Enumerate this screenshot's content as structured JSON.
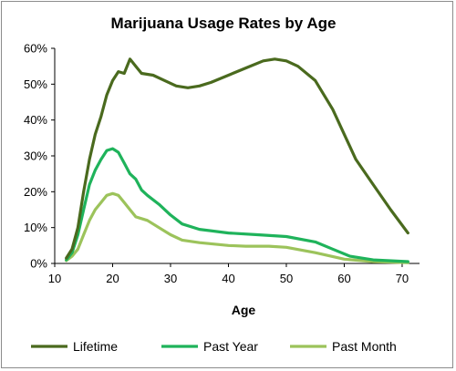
{
  "chart_data": {
    "type": "line",
    "title": "Marijuana Usage Rates by Age",
    "xlabel": "Age",
    "ylabel": "",
    "xlim": [
      10,
      73
    ],
    "ylim": [
      0,
      60
    ],
    "xticks": [
      10,
      20,
      30,
      40,
      50,
      60,
      70
    ],
    "xtick_labels": [
      "10",
      "20",
      "30",
      "40",
      "50",
      "60",
      "70"
    ],
    "yticks": [
      0,
      10,
      20,
      30,
      40,
      50,
      60
    ],
    "ytick_labels": [
      "0%",
      "10%",
      "20%",
      "30%",
      "40%",
      "50%",
      "60%"
    ],
    "legend_position": "bottom",
    "grid": false,
    "series": [
      {
        "name": "Lifetime",
        "color": "#4a6a1e",
        "points": [
          [
            12,
            1.5
          ],
          [
            13,
            4
          ],
          [
            14,
            10
          ],
          [
            15,
            20
          ],
          [
            16,
            29
          ],
          [
            17,
            36
          ],
          [
            18,
            41
          ],
          [
            19,
            47
          ],
          [
            20,
            51
          ],
          [
            21,
            53.5
          ],
          [
            22,
            53
          ],
          [
            23,
            57
          ],
          [
            24,
            55
          ],
          [
            25,
            53
          ],
          [
            27,
            52.5
          ],
          [
            29,
            51
          ],
          [
            31,
            49.5
          ],
          [
            33,
            49
          ],
          [
            35,
            49.5
          ],
          [
            37,
            50.5
          ],
          [
            40,
            52.5
          ],
          [
            43,
            54.5
          ],
          [
            46,
            56.5
          ],
          [
            48,
            57
          ],
          [
            50,
            56.5
          ],
          [
            52,
            55
          ],
          [
            55,
            51
          ],
          [
            58,
            43
          ],
          [
            60,
            36
          ],
          [
            62,
            29
          ],
          [
            65,
            22
          ],
          [
            68,
            15
          ],
          [
            71,
            8.5
          ]
        ]
      },
      {
        "name": "Past Year",
        "color": "#1fb35b",
        "points": [
          [
            12,
            1
          ],
          [
            13,
            3
          ],
          [
            14,
            8
          ],
          [
            15,
            15
          ],
          [
            16,
            22
          ],
          [
            17,
            26
          ],
          [
            18,
            29
          ],
          [
            19,
            31.5
          ],
          [
            20,
            32
          ],
          [
            21,
            31
          ],
          [
            22,
            28
          ],
          [
            23,
            25
          ],
          [
            24,
            23.5
          ],
          [
            25,
            20.5
          ],
          [
            26,
            19
          ],
          [
            28,
            16.5
          ],
          [
            30,
            13.5
          ],
          [
            32,
            11
          ],
          [
            35,
            9.5
          ],
          [
            40,
            8.5
          ],
          [
            45,
            8
          ],
          [
            50,
            7.5
          ],
          [
            55,
            6
          ],
          [
            58,
            4
          ],
          [
            61,
            2
          ],
          [
            65,
            1
          ],
          [
            71,
            0.5
          ]
        ]
      },
      {
        "name": "Past Month",
        "color": "#9cc35b",
        "points": [
          [
            12,
            0.8
          ],
          [
            13,
            2
          ],
          [
            14,
            4
          ],
          [
            15,
            8
          ],
          [
            16,
            12
          ],
          [
            17,
            15
          ],
          [
            18,
            17
          ],
          [
            19,
            19
          ],
          [
            20,
            19.5
          ],
          [
            21,
            19
          ],
          [
            22,
            17
          ],
          [
            23,
            15
          ],
          [
            24,
            13
          ],
          [
            25,
            12.5
          ],
          [
            26,
            12
          ],
          [
            28,
            10
          ],
          [
            30,
            8
          ],
          [
            32,
            6.5
          ],
          [
            35,
            5.8
          ],
          [
            40,
            5
          ],
          [
            43,
            4.8
          ],
          [
            47,
            4.8
          ],
          [
            50,
            4.5
          ],
          [
            55,
            3
          ],
          [
            60,
            1.2
          ],
          [
            65,
            0.5
          ],
          [
            71,
            0.2
          ]
        ]
      }
    ]
  }
}
